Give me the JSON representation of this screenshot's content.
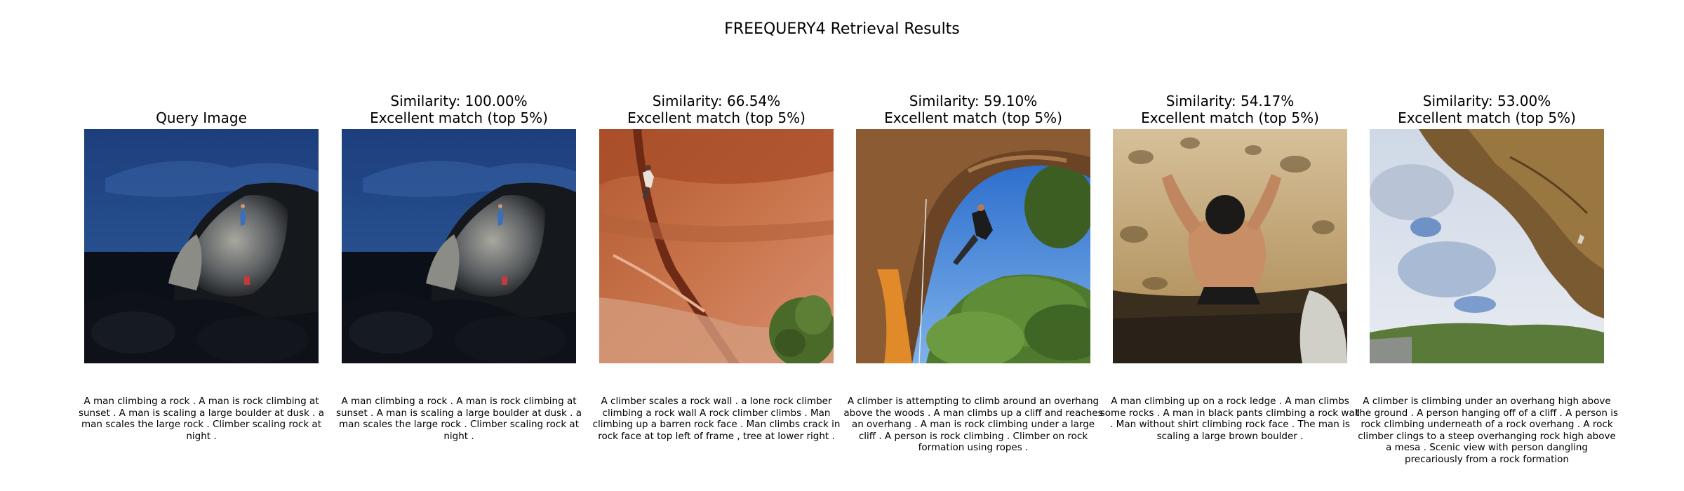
{
  "figure_title": "FREEQUERY4 Retrieval Results",
  "panels": [
    {
      "title_lines": [
        "Query Image"
      ],
      "image": "night-boulder-climber",
      "caption": "A man climbing a rock . A man is rock climbing at sunset . A man is scaling a large boulder at dusk . a man scales the large rock . Climber scaling rock at night ."
    },
    {
      "title_lines": [
        "Similarity: 100.00%",
        "Excellent match (top 5%)"
      ],
      "image": "night-boulder-climber",
      "caption": "A man climbing a rock . A man is rock climbing at sunset . A man is scaling a large boulder at dusk . a man scales the large rock . Climber scaling rock at night ."
    },
    {
      "title_lines": [
        "Similarity: 66.54%",
        "Excellent match (top 5%)"
      ],
      "image": "red-rock-wall-climber",
      "caption": "A climber scales a rock wall . a lone rock climber climbing a rock wall A rock climber climbs . Man climbing up a barren rock face . Man climbs crack in rock face at top left of frame , tree at lower right ."
    },
    {
      "title_lines": [
        "Similarity: 59.10%",
        "Excellent match (top 5%)"
      ],
      "image": "overhang-arch-climber",
      "caption": "A climber is attempting to climb around an overhang above the woods . A man climbs up a cliff and reaches an overhang . A man is rock climbing under a large cliff . A person is rock climbing . Climber on rock formation using ropes ."
    },
    {
      "title_lines": [
        "Similarity: 54.17%",
        "Excellent match (top 5%)"
      ],
      "image": "shirtless-ledge-climber",
      "caption": "A man climbing up on a rock ledge . A man climbs some rocks . A man in black pants climbing a rock wall . Man without shirt climbing rock face . The man is scaling a large brown boulder ."
    },
    {
      "title_lines": [
        "Similarity: 53.00%",
        "Excellent match (top 5%)"
      ],
      "image": "sky-overhang-mesa",
      "caption": "A climber is climbing under an overhang high above the ground . A person hanging off of a cliff . A person is rock climbing underneath of a rock overhang . A rock climber clings to a steep overhanging rock high above a mesa . Scenic view with person dangling precariously from a rock formation"
    }
  ]
}
